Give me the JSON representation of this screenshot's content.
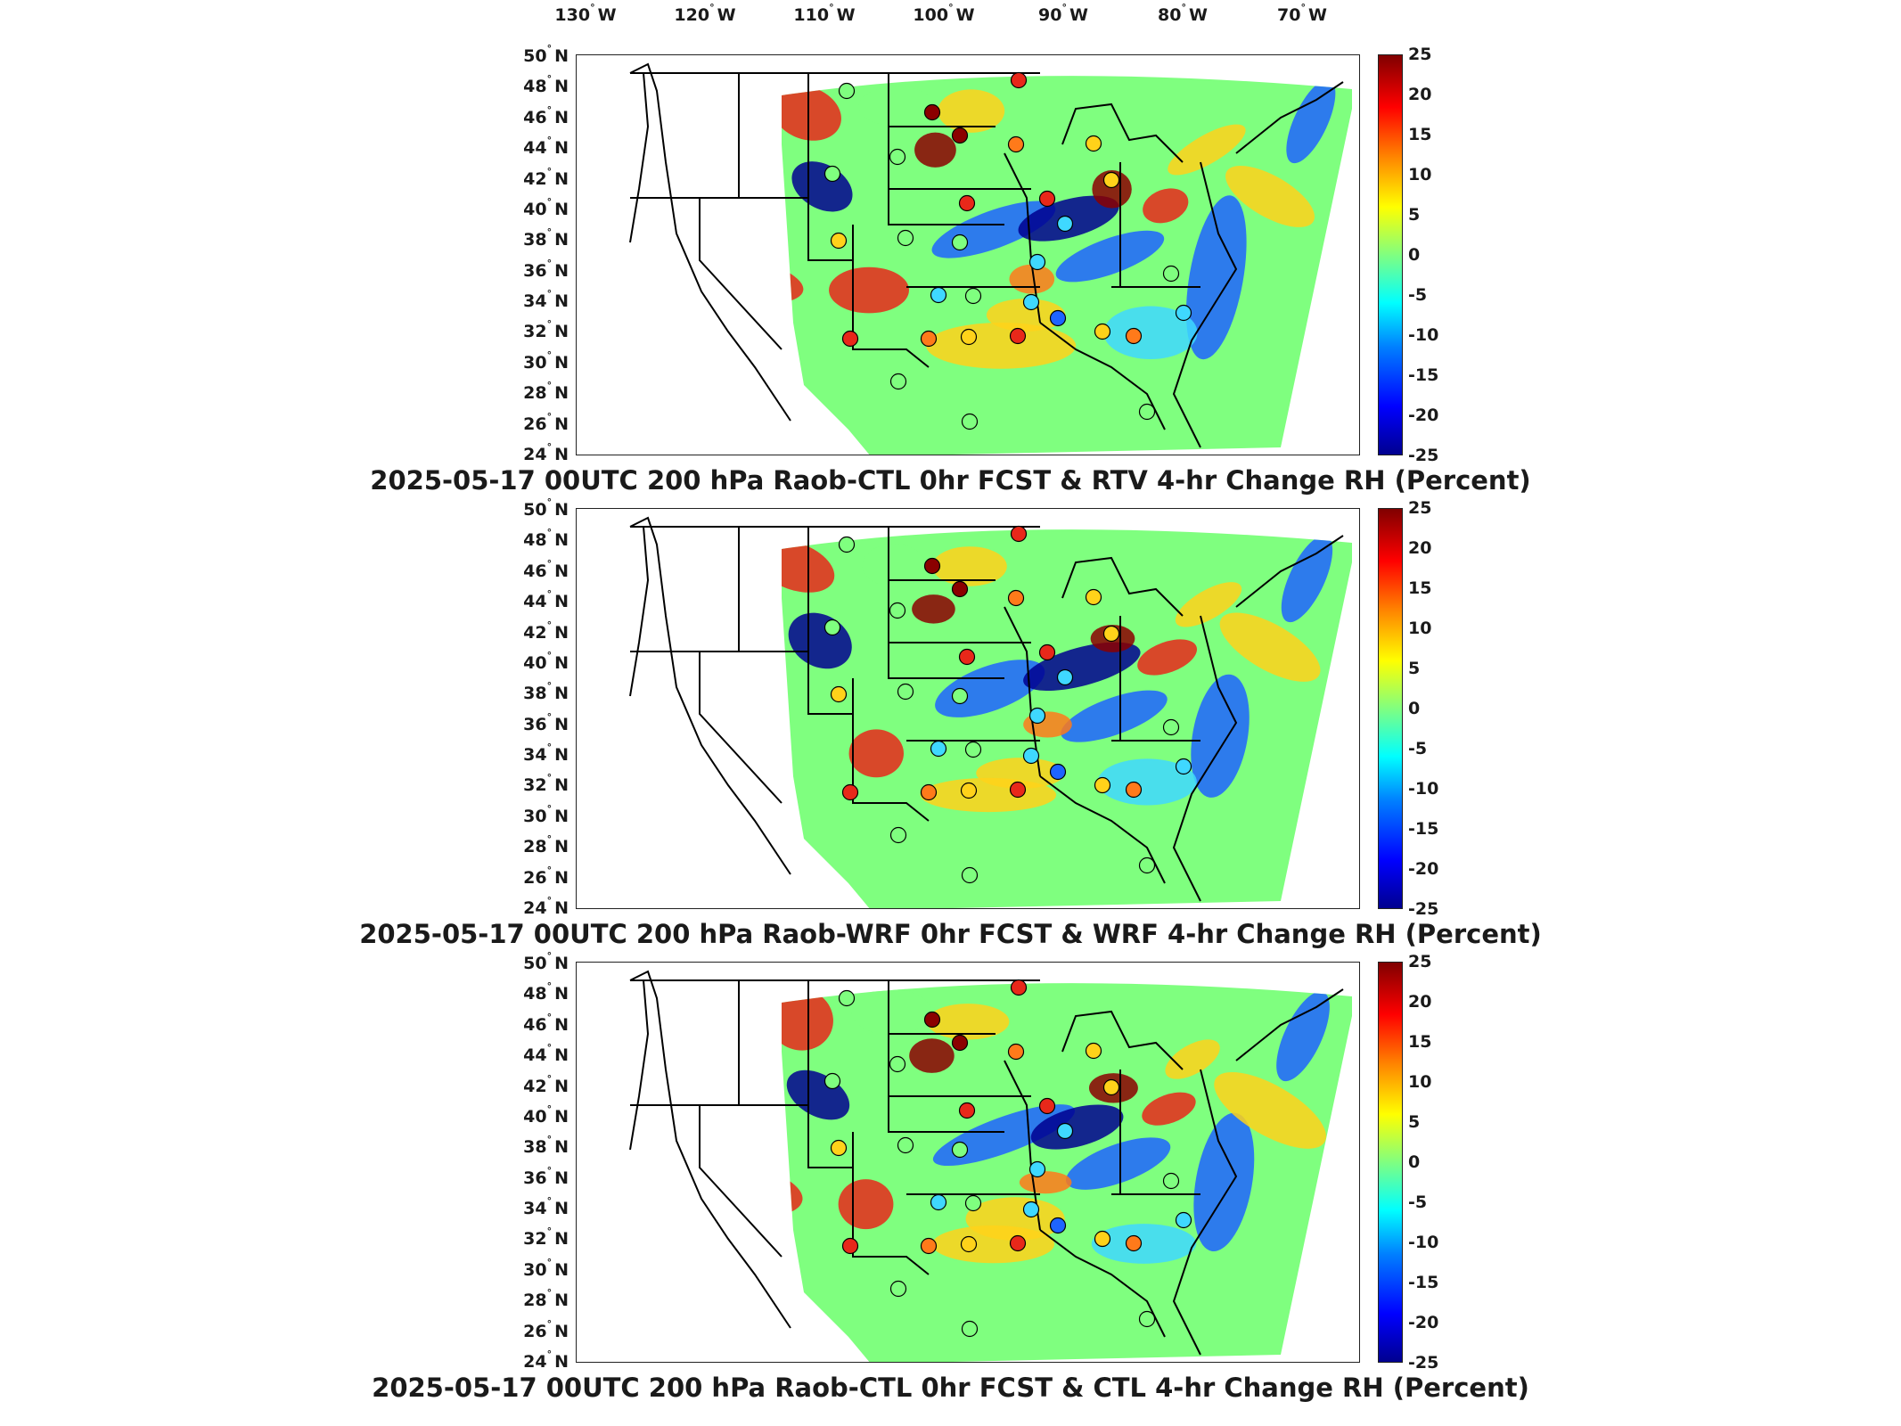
{
  "lon_labels": [
    "130",
    "120",
    "110",
    "100",
    "90",
    "80",
    "70"
  ],
  "lon_suffix": "W",
  "lat_labels": [
    "50",
    "48",
    "46",
    "44",
    "42",
    "40",
    "38",
    "36",
    "34",
    "32",
    "30",
    "28",
    "26",
    "24"
  ],
  "lat_suffix": "N",
  "degree_symbol": "°",
  "colorbar": {
    "ticks": [
      "25",
      "20",
      "15",
      "10",
      "5",
      "0",
      "-5",
      "-10",
      "-15",
      "-20",
      "-25"
    ],
    "min": -25,
    "max": 25,
    "colormap": "jet"
  },
  "panels": [
    {
      "title": "2025-05-17 00UTC 200 hPa Raob-CTL 0hr FCST & RTV 4-hr Change RH (Percent)"
    },
    {
      "title": "2025-05-17 00UTC 200 hPa Raob-WRF 0hr FCST & WRF 4-hr Change RH (Percent)"
    },
    {
      "title": "2025-05-17 00UTC 200 hPa Raob-CTL 0hr FCST & CTL 4-hr Change RH (Percent)"
    }
  ],
  "colors": {
    "dark_red": "#8b0000",
    "red": "#e8281a",
    "orange": "#ff7a1a",
    "yellow": "#ffd21a",
    "green": "#7fff7f",
    "cyan": "#3fd8ff",
    "blue": "#1e64ff",
    "dark_blue": "#00008f"
  }
}
